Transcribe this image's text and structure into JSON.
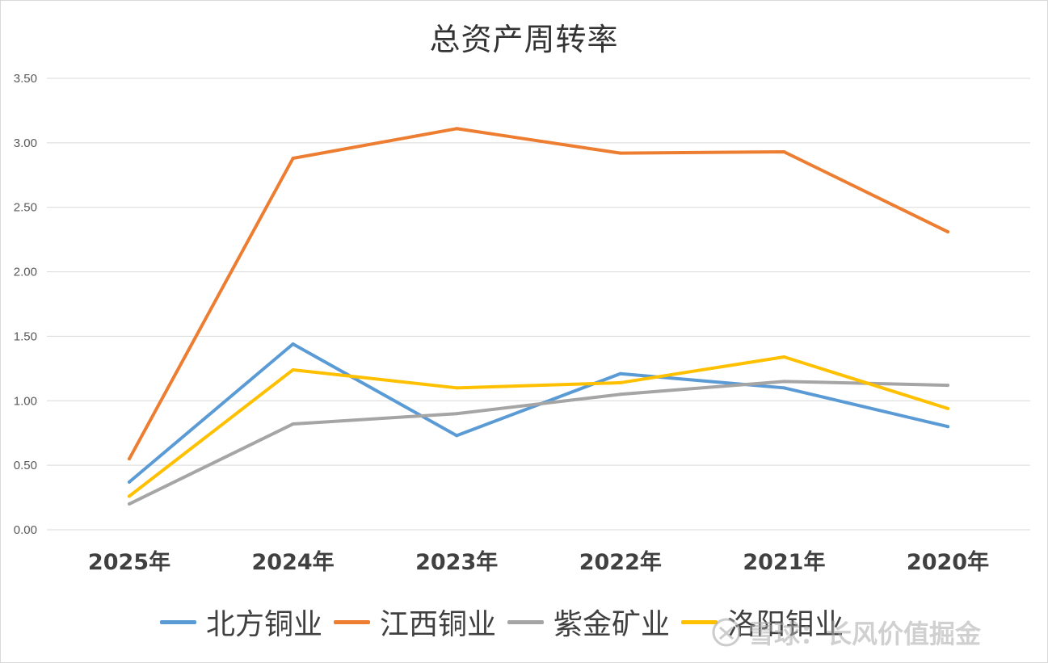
{
  "chart_data": {
    "type": "line",
    "title": "总资产周转率",
    "categories": [
      "2025年",
      "2024年",
      "2023年",
      "2022年",
      "2021年",
      "2020年"
    ],
    "ylim": [
      0,
      3.5
    ],
    "yticks": [
      "0.00",
      "0.50",
      "1.00",
      "1.50",
      "2.00",
      "2.50",
      "3.00",
      "3.50"
    ],
    "grid": true,
    "legend_position": "bottom",
    "series": [
      {
        "name": "北方铜业",
        "color": "#5b9bd5",
        "values": [
          0.37,
          1.44,
          0.73,
          1.21,
          1.1,
          0.8
        ]
      },
      {
        "name": "江西铜业",
        "color": "#ed7d31",
        "values": [
          0.55,
          2.88,
          3.11,
          2.92,
          2.93,
          2.31
        ]
      },
      {
        "name": "紫金矿业",
        "color": "#a5a5a5",
        "values": [
          0.2,
          0.82,
          0.9,
          1.05,
          1.15,
          1.12
        ]
      },
      {
        "name": "洛阳钼业",
        "color": "#ffc000",
        "values": [
          0.26,
          1.24,
          1.1,
          1.14,
          1.34,
          0.94
        ]
      }
    ]
  },
  "watermark": {
    "text": "雪球：长风价值掘金"
  }
}
